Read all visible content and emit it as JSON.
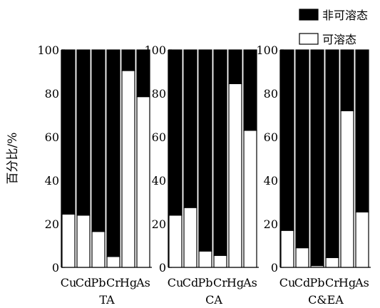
{
  "chart_data": {
    "type": "bar",
    "stacked": true,
    "ylabel": "百分比/%",
    "ylim": [
      0,
      100
    ],
    "yticks": [
      0,
      20,
      40,
      60,
      80,
      100
    ],
    "grid": false,
    "legend": {
      "placement": "top-right",
      "entries": [
        {
          "name": "非可溶态",
          "color": "#000000"
        },
        {
          "name": "可溶态",
          "color": "#ffffff"
        }
      ]
    },
    "categories": [
      "Cu",
      "Cd",
      "Pb",
      "Cr",
      "Hg",
      "As"
    ],
    "panels": [
      {
        "label": "TA",
        "series": [
          {
            "name": "可溶态",
            "values": [
              24.5,
              24,
              16.5,
              5,
              90.5,
              78.5
            ]
          },
          {
            "name": "非可溶态",
            "values": [
              75.5,
              76,
              83.5,
              95,
              9.5,
              21.5
            ]
          }
        ]
      },
      {
        "label": "CA",
        "series": [
          {
            "name": "可溶态",
            "values": [
              24,
              27.5,
              7.5,
              5.5,
              84.5,
              63
            ]
          },
          {
            "name": "非可溶态",
            "values": [
              76,
              72.5,
              92.5,
              94.5,
              15.5,
              37
            ]
          }
        ]
      },
      {
        "label": "C&EA",
        "series": [
          {
            "name": "可溶态",
            "values": [
              17,
              9,
              0.8,
              4.5,
              72,
              25.5
            ]
          },
          {
            "name": "非可溶态",
            "values": [
              83,
              91,
              99.2,
              95.5,
              28,
              74.5
            ]
          }
        ]
      }
    ]
  }
}
